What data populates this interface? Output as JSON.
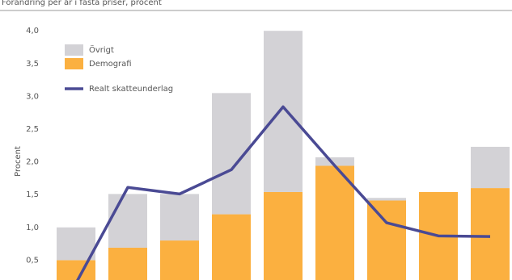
{
  "chart_data": {
    "type": "bar",
    "stacked": true,
    "subtitle": "Förändring per år i fasta priser, procent",
    "y_label": "Procent",
    "categories": [
      null,
      null,
      null,
      null,
      null,
      null,
      null,
      null,
      null
    ],
    "series": [
      {
        "name": "Demografi",
        "color": "#fbb040",
        "values": [
          0.5,
          0.69,
          0.8,
          1.2,
          1.54,
          1.94,
          1.41,
          1.54,
          1.6
        ]
      },
      {
        "name": "Övrigt",
        "color": "#d3d2d6",
        "values": [
          0.5,
          0.82,
          0.71,
          1.85,
          2.46,
          0.13,
          0.04,
          0,
          0.63
        ]
      },
      {
        "name": "Realt skatteunderlag",
        "type": "line",
        "color": "#4a4a94",
        "values": [
          0.15,
          1.61,
          1.51,
          1.88,
          2.84,
          1.94,
          1.07,
          0.87,
          0.86
        ]
      }
    ],
    "ylim": [
      0,
      4.4
    ],
    "yticks": [
      {
        "value": 0.5,
        "label": "0,5"
      },
      {
        "value": 1,
        "label": "1,0"
      },
      {
        "value": 1.5,
        "label": "1,5"
      },
      {
        "value": 2,
        "label": "2,0"
      },
      {
        "value": 2.5,
        "label": "2,5"
      },
      {
        "value": 3,
        "label": "3,0"
      },
      {
        "value": 3.5,
        "label": "3,5"
      },
      {
        "value": 4,
        "label": "4,0"
      }
    ],
    "grid": false,
    "legend": "top-left"
  }
}
